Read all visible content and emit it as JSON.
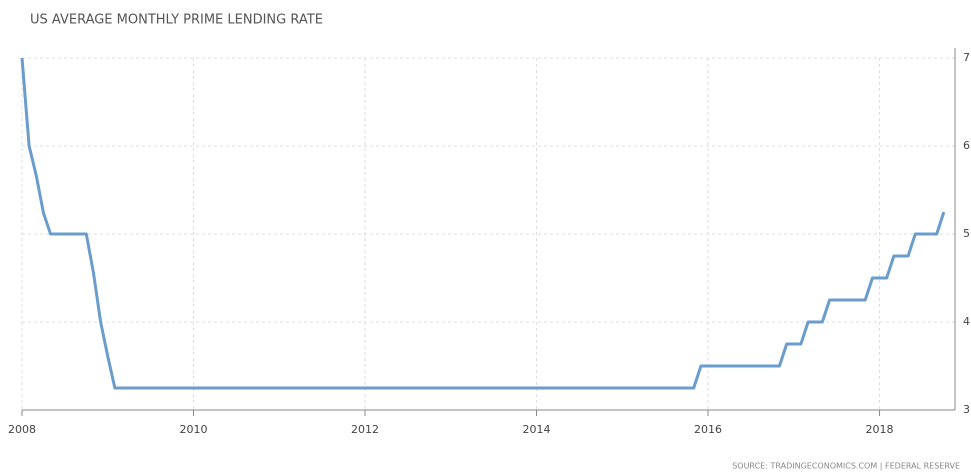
{
  "chart_data": {
    "type": "line",
    "title": "US AVERAGE MONTHLY PRIME LENDING RATE",
    "source": "SOURCE: TRADINGECONOMICS.COM | FEDERAL RESERVE",
    "x": [
      2008.0,
      2008.083,
      2008.167,
      2008.25,
      2008.333,
      2008.75,
      2008.833,
      2008.917,
      2009.0,
      2009.083,
      2015.833,
      2015.917,
      2016.833,
      2016.917,
      2017.083,
      2017.167,
      2017.333,
      2017.417,
      2017.833,
      2017.917,
      2018.083,
      2018.167,
      2018.333,
      2018.417,
      2018.667,
      2018.75
    ],
    "series": [
      {
        "name": "Prime Lending Rate",
        "color": "#6a9ccc",
        "values": [
          7.0,
          6.0,
          5.66,
          5.24,
          5.0,
          5.0,
          4.56,
          4.0,
          3.61,
          3.25,
          3.25,
          3.5,
          3.5,
          3.75,
          3.75,
          4.0,
          4.0,
          4.25,
          4.25,
          4.5,
          4.5,
          4.75,
          4.75,
          5.0,
          5.0,
          5.25
        ]
      }
    ],
    "xlim": [
      2008,
      2018.88
    ],
    "xticks": [
      2008,
      2010,
      2012,
      2014,
      2016,
      2018
    ],
    "ylim": [
      3,
      7
    ],
    "yticks": [
      3,
      4,
      5,
      6,
      7
    ],
    "grid": true
  }
}
